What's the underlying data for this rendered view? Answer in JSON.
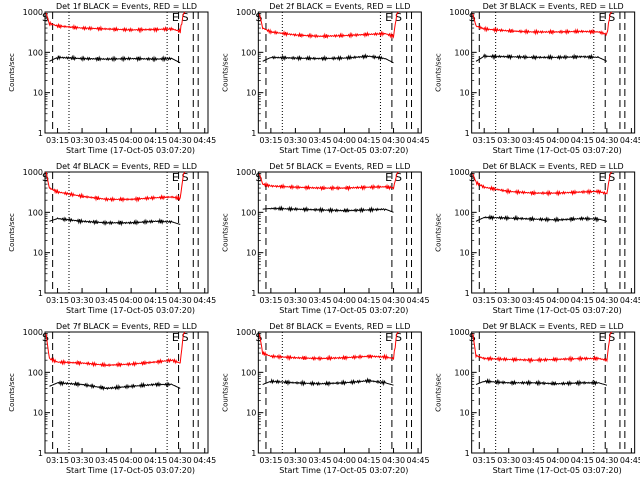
{
  "chart_data": [
    {
      "type": "line",
      "title": "Det 1f BLACK = Events, RED = LLD",
      "xlabel": "Start Time (17-Oct-05 03:07:20)",
      "ylabel": "Counts/sec",
      "x_ticks": [
        "03:15",
        "03:30",
        "03:45",
        "04:00",
        "04:15",
        "04:30",
        "04:45"
      ],
      "y_ticks": [
        "1",
        "10",
        "100",
        "1000"
      ],
      "ylim": [
        1,
        1000
      ],
      "y_scale": "log",
      "xlim": [
        "03:07:20",
        "04:47"
      ],
      "markers": [
        {
          "label": "S",
          "time": "03:07:40"
        },
        {
          "label": "E",
          "time": "04:27"
        },
        {
          "label": "S",
          "time": "04:33"
        }
      ],
      "dotted_lines": [
        "03:22",
        "04:22"
      ],
      "dashed_lines": [
        "03:12",
        "04:29",
        "04:38",
        "04:41"
      ],
      "series": [
        {
          "color": "#ff0000",
          "x": [
            "03:08",
            "03:10",
            "03:15",
            "03:30",
            "03:45",
            "04:00",
            "04:15",
            "04:25",
            "04:30",
            "04:32",
            "04:33"
          ],
          "values": [
            950,
            520,
            450,
            400,
            380,
            360,
            370,
            380,
            330,
            900,
            1000
          ]
        },
        {
          "color": "#000000",
          "x": [
            "03:10",
            "03:15",
            "03:30",
            "03:45",
            "04:00",
            "04:15",
            "04:25",
            "04:30"
          ],
          "values": [
            60,
            75,
            70,
            68,
            70,
            68,
            70,
            55
          ]
        }
      ]
    },
    {
      "type": "line",
      "title": "Det 2f BLACK = Events, RED = LLD",
      "xlabel": "Start Time (17-Oct-05 03:07:20)",
      "ylabel": "Counts/sec",
      "x_ticks": [
        "03:15",
        "03:30",
        "03:45",
        "04:00",
        "04:15",
        "04:30",
        "04:45"
      ],
      "y_ticks": [
        "1",
        "10",
        "100",
        "1000"
      ],
      "ylim": [
        1,
        1000
      ],
      "y_scale": "log",
      "xlim": [
        "03:07:20",
        "04:47"
      ],
      "markers": [
        {
          "label": "S",
          "time": "03:07:40"
        },
        {
          "label": "E",
          "time": "04:27"
        },
        {
          "label": "S",
          "time": "04:33"
        }
      ],
      "dotted_lines": [
        "03:22",
        "04:22"
      ],
      "dashed_lines": [
        "03:12",
        "04:29",
        "04:38",
        "04:41"
      ],
      "series": [
        {
          "color": "#ff0000",
          "x": [
            "03:08",
            "03:10",
            "03:15",
            "03:30",
            "03:45",
            "04:00",
            "04:15",
            "04:25",
            "04:30",
            "04:32",
            "04:33"
          ],
          "values": [
            900,
            400,
            320,
            270,
            250,
            260,
            280,
            290,
            250,
            900,
            1000
          ]
        },
        {
          "color": "#000000",
          "x": [
            "03:10",
            "03:15",
            "03:30",
            "03:45",
            "04:00",
            "04:15",
            "04:25",
            "04:30"
          ],
          "values": [
            60,
            75,
            72,
            70,
            72,
            80,
            70,
            55
          ]
        }
      ]
    },
    {
      "type": "line",
      "title": "Det 3f BLACK = Events, RED = LLD",
      "xlabel": "Start Time (17-Oct-05 03:07:20)",
      "ylabel": "Counts/sec",
      "x_ticks": [
        "03:15",
        "03:30",
        "03:45",
        "04:00",
        "04:15",
        "04:30",
        "04:45"
      ],
      "y_ticks": [
        "1",
        "10",
        "100",
        "1000"
      ],
      "ylim": [
        1,
        1000
      ],
      "y_scale": "log",
      "xlim": [
        "03:07:20",
        "04:47"
      ],
      "markers": [
        {
          "label": "S",
          "time": "03:07:40"
        },
        {
          "label": "E",
          "time": "04:27"
        },
        {
          "label": "S",
          "time": "04:33"
        }
      ],
      "dotted_lines": [
        "03:22",
        "04:22"
      ],
      "dashed_lines": [
        "03:12",
        "04:29",
        "04:38",
        "04:41"
      ],
      "series": [
        {
          "color": "#ff0000",
          "x": [
            "03:08",
            "03:10",
            "03:15",
            "03:30",
            "03:45",
            "04:00",
            "04:15",
            "04:25",
            "04:30",
            "04:32",
            "04:33"
          ],
          "values": [
            900,
            450,
            380,
            340,
            320,
            320,
            330,
            320,
            280,
            900,
            1000
          ]
        },
        {
          "color": "#000000",
          "x": [
            "03:10",
            "03:15",
            "03:30",
            "03:45",
            "04:00",
            "04:15",
            "04:25",
            "04:30"
          ],
          "values": [
            60,
            80,
            78,
            75,
            75,
            78,
            75,
            60
          ]
        }
      ]
    },
    {
      "type": "line",
      "title": "Det 4f BLACK = Events, RED = LLD",
      "xlabel": "Start Time (17-Oct-05 03:07:20)",
      "ylabel": "Counts/sec",
      "x_ticks": [
        "03:15",
        "03:30",
        "03:45",
        "04:00",
        "04:15",
        "04:30",
        "04:45"
      ],
      "y_ticks": [
        "1",
        "10",
        "100",
        "1000"
      ],
      "ylim": [
        1,
        1000
      ],
      "y_scale": "log",
      "xlim": [
        "03:07:20",
        "04:47"
      ],
      "markers": [
        {
          "label": "S",
          "time": "03:07:40"
        },
        {
          "label": "E",
          "time": "04:27"
        },
        {
          "label": "S",
          "time": "04:33"
        }
      ],
      "dotted_lines": [
        "03:22",
        "04:22"
      ],
      "dashed_lines": [
        "03:12",
        "04:29",
        "04:38",
        "04:41"
      ],
      "series": [
        {
          "color": "#ff0000",
          "x": [
            "03:08",
            "03:10",
            "03:15",
            "03:30",
            "03:45",
            "04:00",
            "04:15",
            "04:25",
            "04:30",
            "04:32",
            "04:33"
          ],
          "values": [
            1000,
            400,
            320,
            250,
            210,
            210,
            230,
            240,
            220,
            900,
            1000
          ]
        },
        {
          "color": "#000000",
          "x": [
            "03:10",
            "03:15",
            "03:30",
            "03:45",
            "04:00",
            "04:15",
            "04:25",
            "04:30"
          ],
          "values": [
            60,
            70,
            60,
            55,
            55,
            60,
            58,
            50
          ]
        }
      ]
    },
    {
      "type": "line",
      "title": "Det 5f BLACK = Events, RED = LLD",
      "xlabel": "Start Time (17-Oct-05 03:07:20)",
      "ylabel": "Counts/sec",
      "x_ticks": [
        "03:15",
        "03:30",
        "03:45",
        "04:00",
        "04:15",
        "04:30",
        "04:45"
      ],
      "y_ticks": [
        "1",
        "10",
        "100",
        "1000"
      ],
      "ylim": [
        1,
        1000
      ],
      "y_scale": "log",
      "xlim": [
        "03:07:20",
        "04:47"
      ],
      "markers": [
        {
          "label": "S",
          "time": "03:07:40"
        },
        {
          "label": "E",
          "time": "04:27"
        },
        {
          "label": "S",
          "time": "04:33"
        }
      ],
      "dotted_lines": [],
      "dashed_lines": [
        "03:12",
        "04:29",
        "04:38",
        "04:41"
      ],
      "series": [
        {
          "color": "#ff0000",
          "x": [
            "03:08",
            "03:10",
            "03:15",
            "03:30",
            "03:45",
            "04:00",
            "04:15",
            "04:25",
            "04:30",
            "04:32",
            "04:33"
          ],
          "values": [
            900,
            500,
            450,
            420,
            400,
            400,
            420,
            430,
            400,
            900,
            1000
          ]
        },
        {
          "color": "#000000",
          "x": [
            "03:10",
            "03:15",
            "03:30",
            "03:45",
            "04:00",
            "04:15",
            "04:25",
            "04:30"
          ],
          "values": [
            120,
            125,
            120,
            115,
            110,
            115,
            120,
            100
          ]
        }
      ]
    },
    {
      "type": "line",
      "title": "Det 6f BLACK = Events, RED = LLD",
      "xlabel": "Start Time (17-Oct-05 03:07:20)",
      "ylabel": "Counts/sec",
      "x_ticks": [
        "03:15",
        "03:30",
        "03:45",
        "04:00",
        "04:15",
        "04:30",
        "04:45"
      ],
      "y_ticks": [
        "1",
        "10",
        "100",
        "1000"
      ],
      "ylim": [
        1,
        1000
      ],
      "y_scale": "log",
      "xlim": [
        "03:07:20",
        "04:47"
      ],
      "markers": [
        {
          "label": "S",
          "time": "03:07:40"
        },
        {
          "label": "E",
          "time": "04:27"
        },
        {
          "label": "S",
          "time": "04:33"
        }
      ],
      "dotted_lines": [
        "03:22",
        "04:22"
      ],
      "dashed_lines": [
        "03:12",
        "04:29",
        "04:38",
        "04:41"
      ],
      "series": [
        {
          "color": "#ff0000",
          "x": [
            "03:08",
            "03:10",
            "03:15",
            "03:30",
            "03:45",
            "04:00",
            "04:15",
            "04:25",
            "04:30",
            "04:32",
            "04:33"
          ],
          "values": [
            900,
            550,
            420,
            330,
            300,
            300,
            320,
            330,
            290,
            900,
            1000
          ]
        },
        {
          "color": "#000000",
          "x": [
            "03:10",
            "03:15",
            "03:30",
            "03:45",
            "04:00",
            "04:15",
            "04:25",
            "04:30"
          ],
          "values": [
            60,
            75,
            72,
            68,
            65,
            70,
            68,
            60
          ]
        }
      ]
    },
    {
      "type": "line",
      "title": "Det 7f BLACK = Events, RED = LLD",
      "xlabel": "Start Time (17-Oct-05 03:07:20)",
      "ylabel": "Counts/sec",
      "x_ticks": [
        "03:15",
        "03:30",
        "03:45",
        "04:00",
        "04:15",
        "04:30",
        "04:45"
      ],
      "y_ticks": [
        "1",
        "10",
        "100",
        "1000"
      ],
      "ylim": [
        1,
        1000
      ],
      "y_scale": "log",
      "xlim": [
        "03:07:20",
        "04:47"
      ],
      "markers": [
        {
          "label": "S",
          "time": "03:07:40"
        },
        {
          "label": "E",
          "time": "04:27"
        },
        {
          "label": "S",
          "time": "04:33"
        }
      ],
      "dotted_lines": [
        "03:22",
        "04:22"
      ],
      "dashed_lines": [
        "03:12",
        "04:29",
        "04:38",
        "04:41"
      ],
      "series": [
        {
          "color": "#ff0000",
          "x": [
            "03:08",
            "03:10",
            "03:15",
            "03:30",
            "03:45",
            "04:00",
            "04:15",
            "04:25",
            "04:30",
            "04:32",
            "04:33"
          ],
          "values": [
            900,
            220,
            180,
            170,
            150,
            160,
            180,
            200,
            170,
            900,
            1000
          ]
        },
        {
          "color": "#000000",
          "x": [
            "03:10",
            "03:15",
            "03:30",
            "03:45",
            "04:00",
            "04:15",
            "04:25",
            "04:30"
          ],
          "values": [
            45,
            55,
            50,
            40,
            45,
            50,
            50,
            40
          ]
        }
      ]
    },
    {
      "type": "line",
      "title": "Det 8f BLACK = Events, RED = LLD",
      "xlabel": "Start Time (17-Oct-05 03:07:20)",
      "ylabel": "Counts/sec",
      "x_ticks": [
        "03:15",
        "03:30",
        "03:45",
        "04:00",
        "04:15",
        "04:30",
        "04:45"
      ],
      "y_ticks": [
        "1",
        "10",
        "100",
        "1000"
      ],
      "ylim": [
        1,
        1000
      ],
      "y_scale": "log",
      "xlim": [
        "03:07:20",
        "04:47"
      ],
      "markers": [
        {
          "label": "S",
          "time": "03:07:40"
        },
        {
          "label": "E",
          "time": "04:27"
        },
        {
          "label": "S",
          "time": "04:33"
        }
      ],
      "dotted_lines": [
        "03:22",
        "04:22"
      ],
      "dashed_lines": [
        "03:12",
        "04:29",
        "04:38",
        "04:41"
      ],
      "series": [
        {
          "color": "#ff0000",
          "x": [
            "03:08",
            "03:10",
            "03:15",
            "03:30",
            "03:45",
            "04:00",
            "04:15",
            "04:25",
            "04:30",
            "04:32",
            "04:33"
          ],
          "values": [
            900,
            300,
            250,
            230,
            220,
            230,
            250,
            240,
            220,
            900,
            1000
          ]
        },
        {
          "color": "#000000",
          "x": [
            "03:10",
            "03:15",
            "03:30",
            "03:45",
            "04:00",
            "04:15",
            "04:25",
            "04:30"
          ],
          "values": [
            50,
            60,
            55,
            52,
            55,
            62,
            55,
            48
          ]
        }
      ]
    },
    {
      "type": "line",
      "title": "Det 9f BLACK = Events, RED = LLD",
      "xlabel": "Start Time (17-Oct-05 03:07:20)",
      "ylabel": "Counts/sec",
      "x_ticks": [
        "03:15",
        "03:30",
        "03:45",
        "04:00",
        "04:15",
        "04:30",
        "04:45"
      ],
      "y_ticks": [
        "1",
        "10",
        "100",
        "1000"
      ],
      "ylim": [
        1,
        1000
      ],
      "y_scale": "log",
      "xlim": [
        "03:07:20",
        "04:47"
      ],
      "markers": [
        {
          "label": "S",
          "time": "03:07:40"
        },
        {
          "label": "E",
          "time": "04:27"
        },
        {
          "label": "S",
          "time": "04:33"
        }
      ],
      "dotted_lines": [
        "03:22",
        "04:22"
      ],
      "dashed_lines": [
        "03:12",
        "04:29",
        "04:38",
        "04:41"
      ],
      "series": [
        {
          "color": "#ff0000",
          "x": [
            "03:08",
            "03:10",
            "03:15",
            "03:30",
            "03:45",
            "04:00",
            "04:15",
            "04:25",
            "04:30",
            "04:32",
            "04:33"
          ],
          "values": [
            900,
            260,
            220,
            210,
            200,
            210,
            220,
            220,
            200,
            900,
            1000
          ]
        },
        {
          "color": "#000000",
          "x": [
            "03:10",
            "03:15",
            "03:30",
            "03:45",
            "04:00",
            "04:15",
            "04:25",
            "04:30"
          ],
          "values": [
            50,
            60,
            55,
            55,
            52,
            55,
            55,
            48
          ]
        }
      ]
    }
  ]
}
